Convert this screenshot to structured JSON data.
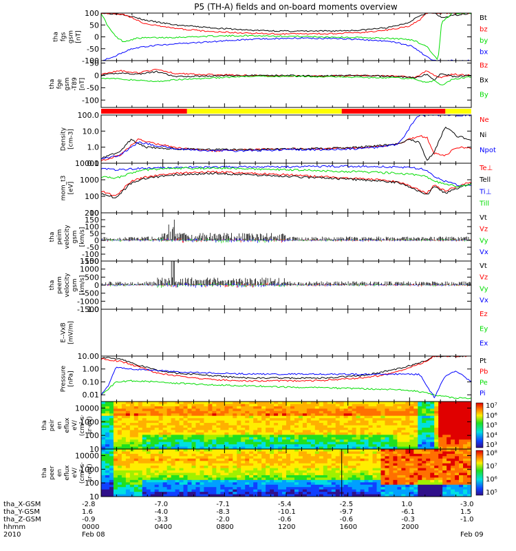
{
  "title": "P5 (TH-A) fields and on-board moments overview",
  "colors": {
    "black": "#000000",
    "red": "#ff0000",
    "green": "#00dd00",
    "blue": "#0000ff",
    "yellow": "#ffff00"
  },
  "chart_data": [
    {
      "type": "line",
      "ylabel": [
        "tha",
        "fgs",
        "gsm",
        "[nT]"
      ],
      "ylim": [
        -100,
        100
      ],
      "yticks": [
        "100",
        "50",
        "0",
        "-50",
        "-100"
      ],
      "series": [
        {
          "name": "Bt",
          "color": "black",
          "x": [
            0,
            0.06,
            0.12,
            0.2,
            0.3,
            0.4,
            0.5,
            0.6,
            0.7,
            0.78,
            0.83,
            0.86,
            0.88,
            0.9,
            0.92,
            0.95,
            1
          ],
          "values": [
            100,
            95,
            70,
            50,
            38,
            28,
            24,
            24,
            28,
            40,
            60,
            90,
            100,
            100,
            80,
            90,
            100
          ]
        },
        {
          "name": "bz",
          "color": "red",
          "x": [
            0,
            0.06,
            0.12,
            0.2,
            0.3,
            0.4,
            0.5,
            0.6,
            0.7,
            0.78,
            0.83,
            0.86,
            0.88,
            0.9,
            0.95,
            1
          ],
          "values": [
            100,
            95,
            55,
            35,
            22,
            15,
            12,
            13,
            18,
            30,
            45,
            70,
            100,
            100,
            100,
            100
          ]
        },
        {
          "name": "by",
          "color": "green",
          "x": [
            0,
            0.02,
            0.04,
            0.06,
            0.1,
            0.2,
            0.3,
            0.4,
            0.5,
            0.6,
            0.7,
            0.8,
            0.84,
            0.88,
            0.9,
            0.91,
            0.92,
            0.95,
            0.97,
            1
          ],
          "values": [
            100,
            40,
            0,
            -20,
            -5,
            -2,
            3,
            5,
            3,
            0,
            -3,
            -8,
            -12,
            -40,
            -80,
            -100,
            60,
            100,
            100,
            100
          ]
        },
        {
          "name": "bx",
          "color": "blue",
          "x": [
            0,
            0.04,
            0.08,
            0.15,
            0.25,
            0.35,
            0.45,
            0.55,
            0.65,
            0.75,
            0.8,
            0.84,
            0.86,
            0.88,
            0.9
          ],
          "values": [
            -100,
            -80,
            -50,
            -35,
            -25,
            -15,
            -8,
            -5,
            -8,
            -15,
            -25,
            -40,
            -60,
            -85,
            -100
          ]
        }
      ]
    },
    {
      "type": "line",
      "ylabel": [
        "tha",
        "fge",
        "gsm",
        "-T89",
        "[nT]"
      ],
      "ylim": [
        -130,
        60
      ],
      "yticks": [
        "50",
        "0",
        "-50",
        "-100"
      ],
      "series": [
        {
          "name": "Bz",
          "color": "red",
          "x": [
            0,
            0.05,
            0.1,
            0.15,
            0.2,
            0.3,
            0.4,
            0.5,
            0.6,
            0.7,
            0.8,
            0.85,
            0.88,
            0.9,
            0.92,
            0.95,
            1
          ],
          "values": [
            5,
            20,
            10,
            25,
            8,
            3,
            0,
            -2,
            -3,
            0,
            -3,
            -8,
            20,
            0,
            -10,
            5,
            0
          ]
        },
        {
          "name": "Bx",
          "color": "black",
          "x": [
            0,
            0.05,
            0.1,
            0.15,
            0.2,
            0.3,
            0.4,
            0.5,
            0.6,
            0.7,
            0.8,
            0.85,
            0.88,
            0.9,
            0.92,
            0.95,
            1
          ],
          "values": [
            0,
            10,
            5,
            15,
            -5,
            -2,
            0,
            0,
            -2,
            0,
            -5,
            -10,
            5,
            -20,
            10,
            -5,
            0
          ]
        },
        {
          "name": "By",
          "color": "green",
          "x": [
            0,
            0.05,
            0.1,
            0.15,
            0.2,
            0.3,
            0.4,
            0.5,
            0.6,
            0.7,
            0.8,
            0.85,
            0.88,
            0.9,
            0.92,
            0.95,
            1
          ],
          "values": [
            -10,
            -15,
            -20,
            -25,
            -18,
            -10,
            -5,
            -3,
            -5,
            -8,
            -10,
            -15,
            -30,
            -20,
            -40,
            -15,
            -5
          ]
        }
      ]
    },
    {
      "type": "bar",
      "name": "mode bar"
    },
    {
      "type": "line",
      "ylabel": [
        "Density",
        "[cm-3]"
      ],
      "scale": "log",
      "ylim": [
        0.1,
        100
      ],
      "yticks": [
        "100.0",
        "10.0",
        "1.0",
        "0.1"
      ],
      "series": [
        {
          "name": "Ne",
          "color": "red",
          "x": [
            0,
            0.05,
            0.1,
            0.2,
            0.3,
            0.4,
            0.5,
            0.6,
            0.7,
            0.8,
            0.83,
            0.86,
            0.88,
            0.9,
            0.93,
            0.96,
            1
          ],
          "values": [
            0.15,
            0.3,
            3,
            0.9,
            0.6,
            0.7,
            0.8,
            0.8,
            0.9,
            1.5,
            3,
            5,
            4,
            0.4,
            0.3,
            1,
            0.9
          ]
        },
        {
          "name": "Ni",
          "color": "black",
          "x": [
            0,
            0.05,
            0.08,
            0.12,
            0.2,
            0.3,
            0.4,
            0.5,
            0.6,
            0.7,
            0.8,
            0.83,
            0.86,
            0.88,
            0.9,
            0.93,
            0.96,
            1
          ],
          "values": [
            0.2,
            0.5,
            3,
            1,
            0.8,
            0.7,
            0.7,
            0.8,
            0.8,
            1,
            1.5,
            3,
            2,
            0.15,
            0.5,
            20,
            5,
            3
          ]
        },
        {
          "name": "Npot",
          "color": "blue",
          "x": [
            0,
            0.05,
            0.1,
            0.2,
            0.3,
            0.4,
            0.5,
            0.6,
            0.7,
            0.75,
            0.8,
            0.82,
            0.84,
            0.86
          ],
          "values": [
            0.2,
            0.3,
            2,
            0.8,
            0.6,
            0.6,
            0.7,
            0.7,
            0.8,
            1,
            1.5,
            5,
            30,
            100
          ]
        }
      ]
    },
    {
      "type": "line",
      "ylabel": [
        "mom_t3",
        "[eV]"
      ],
      "scale": "log",
      "ylim": [
        10,
        10000
      ],
      "yticks": [
        "10000",
        "1000",
        "100",
        "10"
      ],
      "series": [
        {
          "name": "Te⊥",
          "color": "red",
          "x": [
            0,
            0.04,
            0.08,
            0.12,
            0.2,
            0.3,
            0.4,
            0.5,
            0.6,
            0.7,
            0.8,
            0.85,
            0.88,
            0.9,
            0.93,
            0.96,
            1
          ],
          "values": [
            200,
            100,
            800,
            1500,
            2500,
            3000,
            2500,
            2000,
            1500,
            1200,
            800,
            300,
            150,
            500,
            200,
            400,
            800
          ]
        },
        {
          "name": "Tell",
          "color": "black",
          "x": [
            0,
            0.04,
            0.08,
            0.12,
            0.2,
            0.3,
            0.4,
            0.5,
            0.6,
            0.7,
            0.8,
            0.85,
            0.88,
            0.9,
            0.93,
            0.96,
            1
          ],
          "values": [
            150,
            80,
            600,
            1200,
            2000,
            2500,
            2000,
            1600,
            1300,
            1000,
            700,
            250,
            120,
            400,
            150,
            300,
            600
          ]
        },
        {
          "name": "Ti⊥",
          "color": "blue",
          "x": [
            0,
            0.04,
            0.08,
            0.12,
            0.2,
            0.3,
            0.4,
            0.5,
            0.6,
            0.7,
            0.8,
            0.85,
            0.88,
            0.9,
            0.93,
            0.96,
            1
          ],
          "values": [
            5000,
            4000,
            4500,
            5000,
            5500,
            6000,
            6000,
            6000,
            6500,
            6500,
            6000,
            5000,
            4000,
            1500,
            800,
            500,
            400
          ]
        },
        {
          "name": "Till",
          "color": "green",
          "x": [
            0,
            0.04,
            0.08,
            0.12,
            0.2,
            0.3,
            0.4,
            0.5,
            0.6,
            0.7,
            0.8,
            0.85,
            0.88,
            0.9,
            0.93,
            0.96,
            1
          ],
          "values": [
            1500,
            1200,
            2500,
            4000,
            5000,
            5000,
            4500,
            4000,
            3500,
            3000,
            2500,
            2000,
            1500,
            800,
            600,
            400,
            500
          ]
        }
      ]
    },
    {
      "type": "line",
      "ylabel": [
        "tha",
        "peim",
        "velocity",
        "gsm",
        "[km/s]"
      ],
      "ylim": [
        -150,
        200
      ],
      "yticks": [
        "200",
        "150",
        "100",
        "50",
        "0",
        "-50",
        "-100",
        "-150"
      ],
      "series": [
        {
          "name": "Vt",
          "color": "black"
        },
        {
          "name": "Vz",
          "color": "red"
        },
        {
          "name": "Vy",
          "color": "green"
        },
        {
          "name": "Vx",
          "color": "blue"
        }
      ]
    },
    {
      "type": "line",
      "ylabel": [
        "tha",
        "peem",
        "velocity",
        "gsm",
        "[km/s]"
      ],
      "ylim": [
        -1500,
        1500
      ],
      "yticks": [
        "1500",
        "1000",
        "500",
        "0",
        "-500",
        "-1000",
        "-1500"
      ],
      "series": [
        {
          "name": "Vt",
          "color": "black"
        },
        {
          "name": "Vz",
          "color": "red"
        },
        {
          "name": "Vy",
          "color": "green"
        },
        {
          "name": "Vx",
          "color": "blue"
        }
      ]
    },
    {
      "type": "line",
      "ylabel": [
        "E--VxB",
        "[mV/m]"
      ],
      "ylim": [
        0,
        1
      ],
      "yticks": [
        "1.0"
      ],
      "series": [
        {
          "name": "Ez",
          "color": "red"
        },
        {
          "name": "Ey",
          "color": "green"
        },
        {
          "name": "Ex",
          "color": "blue"
        }
      ]
    },
    {
      "type": "line",
      "ylabel": [
        "Pressure",
        "[nPa]"
      ],
      "scale": "log",
      "ylim": [
        0.003,
        10
      ],
      "yticks": [
        "10.00",
        "1.00",
        "0.10",
        "0.01"
      ],
      "series": [
        {
          "name": "Pt",
          "color": "black",
          "x": [
            0,
            0.05,
            0.1,
            0.15,
            0.2,
            0.3,
            0.4,
            0.5,
            0.6,
            0.7,
            0.75,
            0.8,
            0.84,
            0.88,
            0.9
          ],
          "values": [
            8,
            6,
            2,
            0.8,
            0.5,
            0.3,
            0.2,
            0.2,
            0.2,
            0.3,
            0.5,
            1,
            2,
            5,
            10
          ]
        },
        {
          "name": "Pb",
          "color": "red",
          "x": [
            0,
            0.05,
            0.1,
            0.15,
            0.2,
            0.3,
            0.4,
            0.5,
            0.6,
            0.7,
            0.75,
            0.8,
            0.84,
            0.88,
            0.9
          ],
          "values": [
            6,
            4,
            1.5,
            0.5,
            0.3,
            0.15,
            0.12,
            0.12,
            0.13,
            0.2,
            0.3,
            0.6,
            1.5,
            4,
            10
          ]
        },
        {
          "name": "Pe",
          "color": "green",
          "x": [
            0,
            0.02,
            0.04,
            0.08,
            0.15,
            0.2,
            0.3,
            0.4,
            0.5,
            0.6,
            0.7,
            0.8,
            0.85,
            0.9,
            0.95,
            1
          ],
          "values": [
            0.01,
            0.03,
            0.1,
            0.12,
            0.1,
            0.08,
            0.06,
            0.05,
            0.04,
            0.035,
            0.03,
            0.025,
            0.02,
            0.01,
            0.006,
            0.005
          ]
        },
        {
          "name": "Pi",
          "color": "blue",
          "x": [
            0,
            0.02,
            0.04,
            0.08,
            0.15,
            0.2,
            0.3,
            0.4,
            0.5,
            0.6,
            0.7,
            0.8,
            0.86,
            0.88,
            0.9,
            0.93,
            0.96,
            1
          ],
          "values": [
            0.01,
            0.05,
            1.5,
            1,
            0.8,
            0.6,
            0.5,
            0.4,
            0.4,
            0.4,
            0.4,
            0.4,
            0.4,
            0.05,
            0.006,
            0.3,
            0.7,
            0.1
          ]
        }
      ]
    },
    {
      "type": "heatmap",
      "ylabel": [
        "tha",
        "peir",
        "en",
        "eflux",
        "eV/",
        "(cm²·s·",
        "sr·eV)"
      ],
      "scale": "log",
      "ylim": [
        10,
        30000
      ],
      "yticks": [
        "10000",
        "1000",
        "100",
        "10"
      ],
      "colorbar": [
        "10⁷",
        "10⁶",
        "10⁵",
        "10⁴",
        "10³"
      ]
    },
    {
      "type": "heatmap",
      "ylabel": [
        "tha",
        "peer",
        "en",
        "eflux",
        "eV/",
        "(cm²·s·",
        "sr·eV)"
      ],
      "scale": "log",
      "ylim": [
        10,
        30000
      ],
      "yticks": [
        "10000",
        "1000",
        "100",
        "10"
      ],
      "colorbar": [
        "10⁸",
        "10⁷",
        "10⁶",
        "10⁵"
      ]
    }
  ],
  "axis": {
    "row_labels": [
      "tha_X-GSM",
      "tha_Y-GSM",
      "tha_Z-GSM",
      "hhmm",
      "2010"
    ],
    "columns": [
      [
        "-2.8",
        "1.6",
        "-0.9",
        "0000",
        "Feb 08"
      ],
      [
        "-7.0",
        "-4.0",
        "-3.3",
        "0400",
        ""
      ],
      [
        "-7.1",
        "-8.3",
        "-2.0",
        "0800",
        ""
      ],
      [
        "-5.4",
        "-10.1",
        "-0.6",
        "1200",
        ""
      ],
      [
        "-2.5",
        "-9.7",
        "-0.6",
        "1600",
        ""
      ],
      [
        "1.0",
        "-6.1",
        "-0.3",
        "2000",
        ""
      ],
      [
        "-3.0",
        "1.5",
        "-1.0",
        "",
        "Feb 09"
      ]
    ]
  }
}
